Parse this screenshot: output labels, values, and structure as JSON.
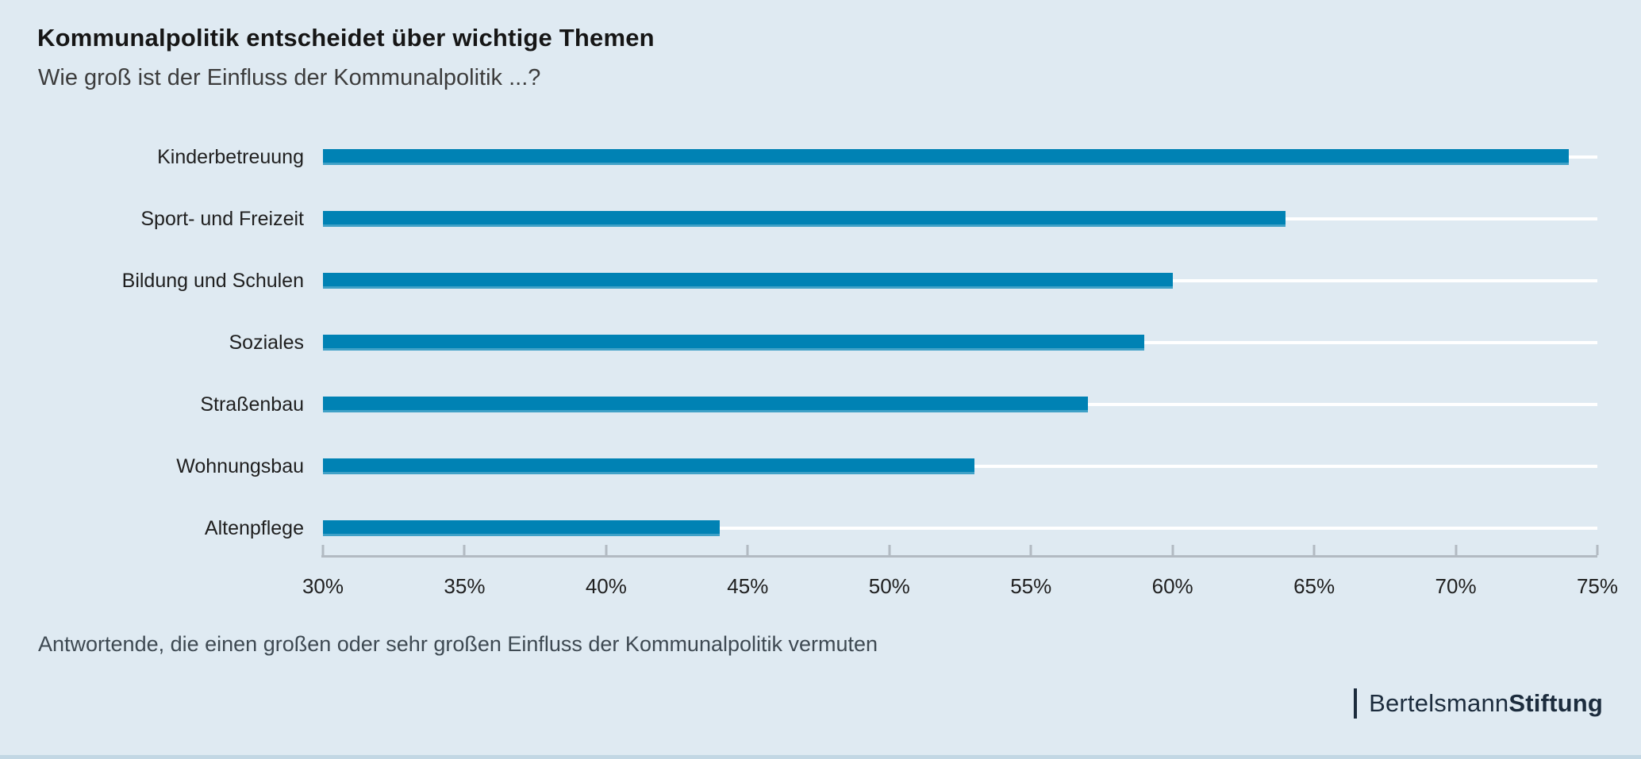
{
  "page": {
    "background_color": "#dfeaf2",
    "bottom_border_color": "#c2d7e4"
  },
  "chart_data": {
    "type": "bar",
    "orientation": "horizontal",
    "title": "Kommunalpolitik entscheidet über wichtige Themen",
    "subtitle": "Wie groß ist der Einfluss der Kommunalpolitik ...?",
    "categories": [
      "Kinderbetreuung",
      "Sport- und Freizeit",
      "Bildung und Schulen",
      "Soziales",
      "Straßenbau",
      "Wohnungsbau",
      "Altenpflege"
    ],
    "values": [
      74,
      64,
      60,
      59,
      57,
      53,
      44
    ],
    "unit": "%",
    "xlim": [
      30,
      75
    ],
    "x_ticks": [
      "30%",
      "35%",
      "40%",
      "45%",
      "50%",
      "55%",
      "60%",
      "65%",
      "70%",
      "75%"
    ],
    "grid": false,
    "legend": null,
    "bar_color": "#0082b4",
    "track_color": "#ffffff",
    "axis_color": "#b2bac2",
    "note": "Antwortende, die einen großen oder sehr großen Einfluss der Kommunalpolitik vermuten"
  },
  "branding": {
    "name_regular": "Bertelsmann",
    "name_bold": "Stiftung",
    "color": "#1c2c3d"
  }
}
